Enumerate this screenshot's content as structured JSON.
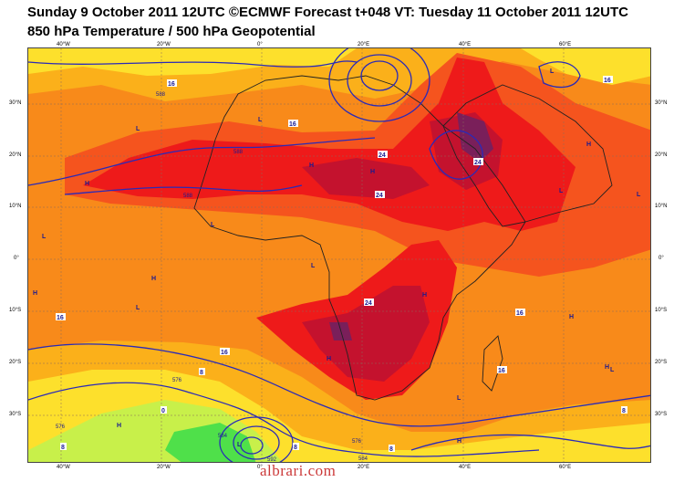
{
  "title_line1": "Sunday 9 October 2011 12UTC ©ECMWF Forecast t+048 VT: Tuesday 11 October 2011 12UTC",
  "title_line2": "850 hPa Temperature / 500 hPa Geopotential",
  "lon_ticks": [
    "40°W",
    "20°W",
    "0°",
    "20°E",
    "40°E",
    "60°E"
  ],
  "lat_ticks": [
    "30°N",
    "20°N",
    "10°N",
    "0°",
    "10°S",
    "20°S",
    "30°S"
  ],
  "temp_labels": [
    "16",
    "16",
    "16",
    "16",
    "16",
    "16",
    "16",
    "24",
    "24",
    "24",
    "24",
    "8",
    "8",
    "8",
    "8",
    "0",
    "8"
  ],
  "geo_labels": [
    "588",
    "588",
    "588",
    "576",
    "576",
    "584",
    "592",
    "576",
    "584"
  ],
  "pressure_marks": [
    "H",
    "H",
    "H",
    "H",
    "H",
    "H",
    "H",
    "H",
    "H",
    "H",
    "H",
    "H",
    "L",
    "L",
    "L",
    "L",
    "L",
    "L",
    "L",
    "L",
    "L",
    "L",
    "L",
    "L"
  ],
  "watermark": "albrari.com",
  "colors": {
    "t_dark": "#7a1f5a",
    "t_deep": "#c4122e",
    "t_red": "#ee1a1a",
    "t_orangered": "#f5541e",
    "t_orange": "#f88a1a",
    "t_amber": "#fbb01a",
    "t_yellow": "#fde02c",
    "t_lime": "#c8f04a",
    "t_green": "#4fe04a",
    "contour": "#2a2ab8",
    "coast": "#222222"
  }
}
